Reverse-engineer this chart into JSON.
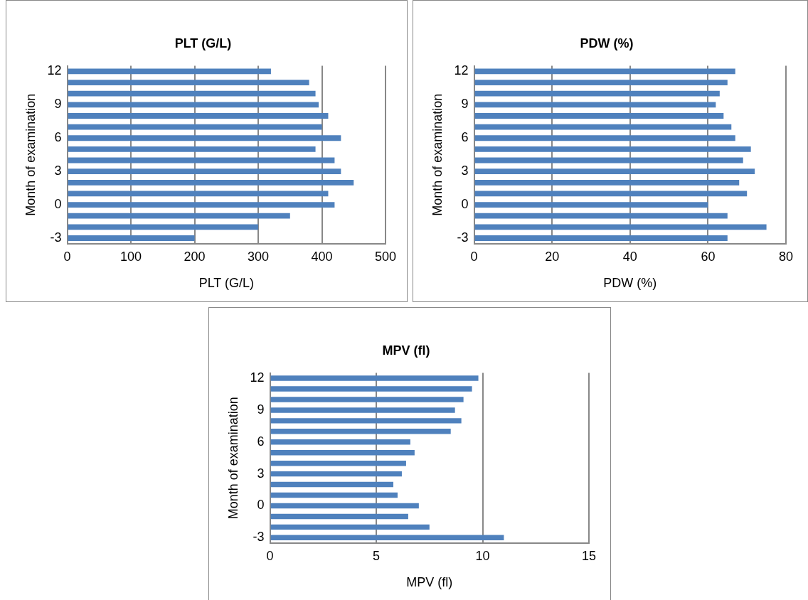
{
  "chart_data": [
    {
      "type": "bar",
      "orientation": "horizontal",
      "title": "PLT (G/L)",
      "xlabel": "PLT (G/L)",
      "ylabel": "Month of examination",
      "categories": [
        "12",
        null,
        null,
        "9",
        null,
        null,
        "6",
        null,
        null,
        "3",
        null,
        null,
        "0",
        null,
        null,
        "-3"
      ],
      "values": [
        320,
        380,
        390,
        395,
        410,
        400,
        430,
        390,
        420,
        430,
        450,
        410,
        420,
        350,
        300,
        200
      ],
      "color": "#4f81bd",
      "xlim": [
        0,
        500
      ],
      "xticks": [
        0,
        100,
        200,
        300,
        400,
        500
      ],
      "grid": "x"
    },
    {
      "type": "bar",
      "orientation": "horizontal",
      "title": "PDW (%)",
      "xlabel": "PDW (%)",
      "ylabel": "Month of examination",
      "categories": [
        "12",
        null,
        null,
        "9",
        null,
        null,
        "6",
        null,
        null,
        "3",
        null,
        null,
        "0",
        null,
        null,
        "-3"
      ],
      "values": [
        67,
        65,
        63,
        62,
        64,
        66,
        67,
        71,
        69,
        72,
        68,
        70,
        60,
        65,
        75,
        65
      ],
      "color": "#4f81bd",
      "xlim": [
        0,
        80
      ],
      "xticks": [
        0,
        20,
        40,
        60,
        80
      ],
      "grid": "x"
    },
    {
      "type": "bar",
      "orientation": "horizontal",
      "title": "MPV (fl)",
      "xlabel": "MPV (fl)",
      "ylabel": "Month of examination",
      "categories": [
        "12",
        null,
        null,
        "9",
        null,
        null,
        "6",
        null,
        null,
        "3",
        null,
        null,
        "0",
        null,
        null,
        "-3"
      ],
      "values": [
        9.8,
        9.5,
        9.1,
        8.7,
        9.0,
        8.5,
        6.6,
        6.8,
        6.4,
        6.2,
        5.8,
        6.0,
        7.0,
        6.5,
        7.5,
        11.0
      ],
      "color": "#4f81bd",
      "xlim": [
        0,
        15
      ],
      "xticks": [
        0,
        5,
        10,
        15
      ],
      "grid": "x"
    }
  ]
}
